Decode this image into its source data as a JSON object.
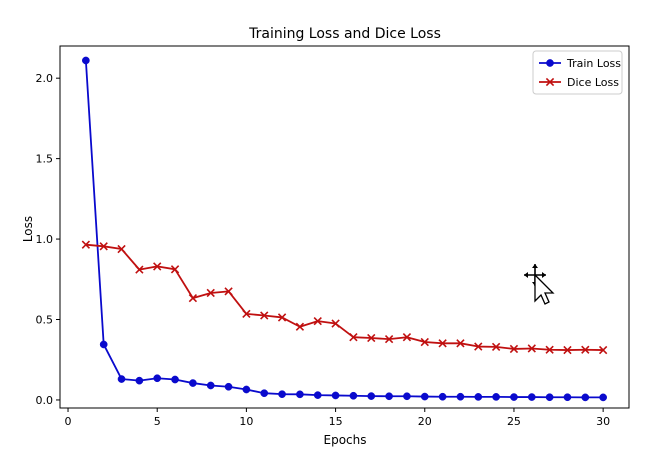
{
  "chart_data": {
    "type": "line",
    "title": "Training Loss and Dice Loss",
    "xlabel": "Epochs",
    "ylabel": "Loss",
    "xlim": [
      -0.45,
      31.45
    ],
    "ylim": [
      -0.05,
      2.2
    ],
    "xticks": [
      0,
      5,
      10,
      15,
      20,
      25,
      30
    ],
    "xtick_labels": [
      "0",
      "5",
      "10",
      "15",
      "20",
      "25",
      "30"
    ],
    "yticks": [
      0.0,
      0.5,
      1.0,
      1.5,
      2.0
    ],
    "ytick_labels": [
      "0.0",
      "0.5",
      "1.0",
      "1.5",
      "2.0"
    ],
    "grid": false,
    "legend_position": "top-right",
    "x": [
      1,
      2,
      3,
      4,
      5,
      6,
      7,
      8,
      9,
      10,
      11,
      12,
      13,
      14,
      15,
      16,
      17,
      18,
      19,
      20,
      21,
      22,
      23,
      24,
      25,
      26,
      27,
      28,
      29,
      30
    ],
    "series": [
      {
        "name": "Train Loss",
        "color": "#0a0acd",
        "marker": "circle",
        "values": [
          2.11,
          0.345,
          0.13,
          0.12,
          0.135,
          0.127,
          0.105,
          0.09,
          0.082,
          0.065,
          0.042,
          0.036,
          0.035,
          0.03,
          0.028,
          0.026,
          0.024,
          0.023,
          0.023,
          0.021,
          0.02,
          0.02,
          0.019,
          0.019,
          0.018,
          0.018,
          0.017,
          0.017,
          0.016,
          0.016
        ]
      },
      {
        "name": "Dice Loss",
        "color": "#c01010",
        "marker": "x",
        "values": [
          0.965,
          0.955,
          0.938,
          0.81,
          0.83,
          0.812,
          0.633,
          0.665,
          0.675,
          0.535,
          0.525,
          0.513,
          0.455,
          0.49,
          0.475,
          0.39,
          0.385,
          0.378,
          0.39,
          0.36,
          0.352,
          0.352,
          0.332,
          0.33,
          0.317,
          0.32,
          0.312,
          0.31,
          0.312,
          0.31
        ]
      }
    ]
  },
  "cursor": {
    "icon": "move-cursor-icon"
  }
}
